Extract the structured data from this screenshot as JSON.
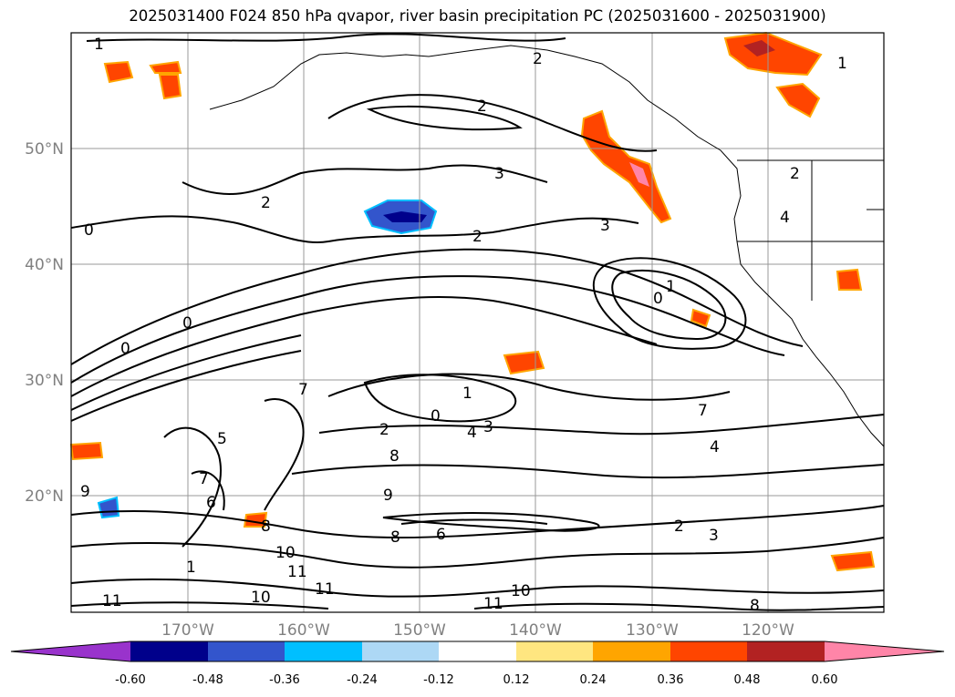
{
  "title": "2025031400 F024 850 hPa qvapor, river basin precipitation PC (2025031600 - 2025031900)",
  "lat_labels": [
    "50°N",
    "40°N",
    "30°N",
    "20°N"
  ],
  "lon_labels": [
    "170°W",
    "160°W",
    "150°W",
    "140°W",
    "130°W",
    "120°W"
  ],
  "colorbar": {
    "ticks": [
      "-0.60",
      "-0.48",
      "-0.36",
      "-0.24",
      "-0.12",
      "0.12",
      "0.24",
      "0.36",
      "0.48",
      "0.60"
    ],
    "colors": [
      "#9933cc",
      "#00008b",
      "#3355cc",
      "#00bfff",
      "#add8f5",
      "#ffffff",
      "#ffe680",
      "#ffa500",
      "#ff4500",
      "#b22222",
      "#ff85a8"
    ]
  },
  "contour_labels": [
    "1",
    "2",
    "2",
    "2",
    "3",
    "2",
    "3",
    "2",
    "4",
    "1",
    "0",
    "0",
    "0",
    "0",
    "1",
    "2",
    "1",
    "7",
    "4",
    "3",
    "0",
    "4",
    "8",
    "9",
    "7",
    "5",
    "6",
    "9",
    "8",
    "10",
    "11",
    "10",
    "11",
    "11",
    "10",
    "11",
    "7",
    "8",
    "2",
    "3",
    "8",
    "6",
    "1"
  ]
}
